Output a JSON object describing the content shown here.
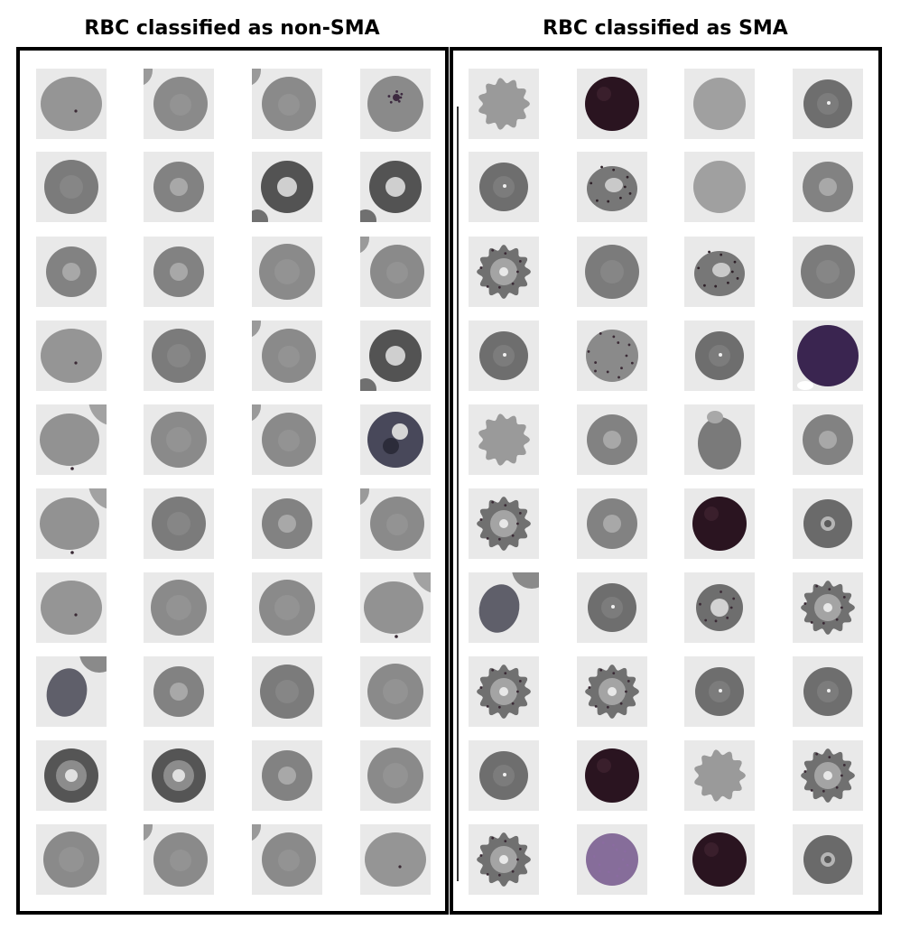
{
  "titles": {
    "left": "RBC classified as non-SMA",
    "right": "RBC classified as SMA"
  },
  "colors": {
    "tile_background": "#e9e9e9",
    "cell_gray": "#8a8a8a",
    "cell_dark": "#5e5e5e",
    "parasite_dark": "#2a1420",
    "stain_purple": "#6d4e86"
  },
  "grids": {
    "non_sma": {
      "rows": [
        [
          "oval-light",
          "round-neighbor",
          "round-neighbor",
          "spotted-purple"
        ],
        [
          "round-dark",
          "round-pale-center",
          "round-dark-center",
          "round-dark-center"
        ],
        [
          "round-pale-center",
          "round-pale-center",
          "round-plain",
          "round-neighbor"
        ],
        [
          "oval-light",
          "round-dark",
          "round-neighbor",
          "round-dark-center"
        ],
        [
          "oval-neighbor",
          "round-plain",
          "round-neighbor",
          "dark-inclusion"
        ],
        [
          "oval-neighbor",
          "round-dark",
          "round-pale-center",
          "round-neighbor"
        ],
        [
          "oval-light",
          "round-plain",
          "round-plain",
          "oval-neighbor"
        ],
        [
          "oval-dark",
          "round-pale-center",
          "round-dark",
          "round-plain"
        ],
        [
          "ring-dark",
          "ring-dark",
          "round-pale-center",
          "round-plain"
        ],
        [
          "round-plain",
          "round-neighbor",
          "round-neighbor",
          "oval-light"
        ]
      ]
    },
    "sma": {
      "rows": [
        [
          "crenated-pale",
          "dark-parasite",
          "round-pale",
          "round-dot"
        ],
        [
          "round-dot",
          "spotted-irregular",
          "round-pale",
          "round-pale-center"
        ],
        [
          "crenated-ring",
          "round-dark",
          "spotted-irregular",
          "round-dark"
        ],
        [
          "round-dot",
          "spotted-round",
          "round-dot",
          "purple-dark"
        ],
        [
          "crenated-pale",
          "round-pale-center",
          "oval-tail",
          "round-pale-center"
        ],
        [
          "crenated-ring",
          "round-pale-center",
          "dark-parasite",
          "round-ring-small"
        ],
        [
          "oval-dark",
          "round-dot",
          "spotted-ring",
          "crenated-ring"
        ],
        [
          "crenated-ring",
          "crenated-ring",
          "round-dot",
          "round-dot"
        ],
        [
          "round-dot",
          "dark-parasite",
          "crenated-pale",
          "crenated-ring"
        ],
        [
          "crenated-ring",
          "purple-pale",
          "dark-parasite",
          "round-ring-small"
        ]
      ]
    }
  }
}
